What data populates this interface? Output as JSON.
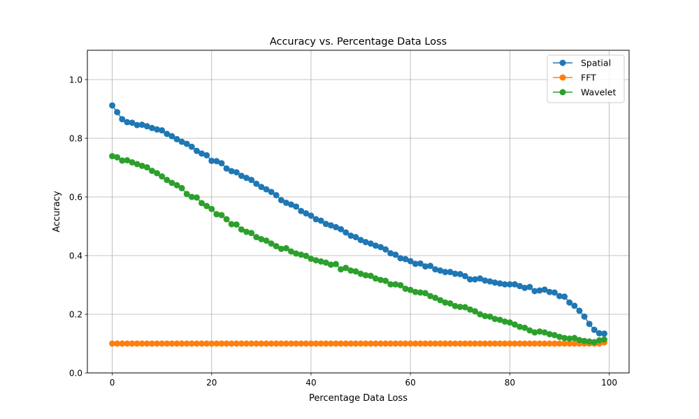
{
  "chart_data": {
    "type": "line",
    "title": "Accuracy vs. Percentage Data Loss",
    "xlabel": "Percentage Data Loss",
    "ylabel": "Accuracy",
    "xlim": [
      -5,
      104
    ],
    "ylim": [
      0,
      1.1
    ],
    "xticks": [
      "0",
      "20",
      "40",
      "60",
      "80",
      "100"
    ],
    "yticks": [
      "0.0",
      "0.2",
      "0.4",
      "0.6",
      "0.8",
      "1.0"
    ],
    "grid": true,
    "legend_position": "top-right",
    "x": [
      0,
      1,
      2,
      3,
      4,
      5,
      6,
      7,
      8,
      9,
      10,
      11,
      12,
      13,
      14,
      15,
      16,
      17,
      18,
      19,
      20,
      21,
      22,
      23,
      24,
      25,
      26,
      27,
      28,
      29,
      30,
      31,
      32,
      33,
      34,
      35,
      36,
      37,
      38,
      39,
      40,
      41,
      42,
      43,
      44,
      45,
      46,
      47,
      48,
      49,
      50,
      51,
      52,
      53,
      54,
      55,
      56,
      57,
      58,
      59,
      60,
      61,
      62,
      63,
      64,
      65,
      66,
      67,
      68,
      69,
      70,
      71,
      72,
      73,
      74,
      75,
      76,
      77,
      78,
      79,
      80,
      81,
      82,
      83,
      84,
      85,
      86,
      87,
      88,
      89,
      90,
      91,
      92,
      93,
      94,
      95,
      96,
      97,
      98,
      99
    ],
    "series": [
      {
        "name": "Spatial",
        "color": "#1f77b4",
        "values": [
          0.912,
          0.889,
          0.865,
          0.855,
          0.853,
          0.845,
          0.846,
          0.841,
          0.835,
          0.83,
          0.827,
          0.815,
          0.807,
          0.797,
          0.788,
          0.781,
          0.771,
          0.757,
          0.748,
          0.742,
          0.723,
          0.722,
          0.715,
          0.697,
          0.688,
          0.684,
          0.672,
          0.665,
          0.658,
          0.645,
          0.634,
          0.626,
          0.617,
          0.606,
          0.589,
          0.58,
          0.574,
          0.567,
          0.552,
          0.544,
          0.536,
          0.524,
          0.519,
          0.508,
          0.503,
          0.497,
          0.49,
          0.479,
          0.468,
          0.463,
          0.453,
          0.446,
          0.441,
          0.434,
          0.429,
          0.421,
          0.408,
          0.403,
          0.391,
          0.388,
          0.381,
          0.372,
          0.373,
          0.363,
          0.365,
          0.353,
          0.349,
          0.344,
          0.344,
          0.338,
          0.337,
          0.33,
          0.319,
          0.319,
          0.322,
          0.315,
          0.312,
          0.308,
          0.305,
          0.302,
          0.302,
          0.302,
          0.296,
          0.29,
          0.293,
          0.279,
          0.281,
          0.284,
          0.276,
          0.274,
          0.262,
          0.26,
          0.24,
          0.229,
          0.212,
          0.192,
          0.167,
          0.147,
          0.135,
          0.134
        ]
      },
      {
        "name": "FFT",
        "color": "#ff7f0e",
        "values": [
          0.1,
          0.1,
          0.1,
          0.1,
          0.1,
          0.1,
          0.1,
          0.1,
          0.1,
          0.1,
          0.1,
          0.1,
          0.1,
          0.1,
          0.1,
          0.1,
          0.1,
          0.1,
          0.1,
          0.1,
          0.1,
          0.1,
          0.1,
          0.1,
          0.1,
          0.1,
          0.1,
          0.1,
          0.1,
          0.1,
          0.1,
          0.1,
          0.1,
          0.1,
          0.1,
          0.1,
          0.1,
          0.1,
          0.1,
          0.1,
          0.1,
          0.1,
          0.1,
          0.1,
          0.1,
          0.1,
          0.1,
          0.1,
          0.1,
          0.1,
          0.1,
          0.1,
          0.1,
          0.1,
          0.1,
          0.1,
          0.1,
          0.1,
          0.1,
          0.1,
          0.1,
          0.1,
          0.1,
          0.1,
          0.1,
          0.1,
          0.1,
          0.1,
          0.1,
          0.1,
          0.1,
          0.1,
          0.1,
          0.1,
          0.1,
          0.1,
          0.1,
          0.1,
          0.1,
          0.1,
          0.1,
          0.1,
          0.1,
          0.1,
          0.1,
          0.1,
          0.1,
          0.1,
          0.1,
          0.1,
          0.1,
          0.1,
          0.1,
          0.1,
          0.1,
          0.1,
          0.1,
          0.1,
          0.1,
          0.104
        ]
      },
      {
        "name": "Wavelet",
        "color": "#2ca02c",
        "values": [
          0.739,
          0.735,
          0.724,
          0.725,
          0.718,
          0.712,
          0.706,
          0.701,
          0.689,
          0.681,
          0.67,
          0.658,
          0.648,
          0.64,
          0.63,
          0.61,
          0.6,
          0.598,
          0.579,
          0.569,
          0.559,
          0.541,
          0.538,
          0.524,
          0.507,
          0.506,
          0.489,
          0.481,
          0.477,
          0.463,
          0.456,
          0.451,
          0.441,
          0.432,
          0.423,
          0.425,
          0.414,
          0.407,
          0.403,
          0.399,
          0.389,
          0.384,
          0.38,
          0.376,
          0.369,
          0.371,
          0.353,
          0.358,
          0.349,
          0.346,
          0.338,
          0.333,
          0.331,
          0.322,
          0.317,
          0.314,
          0.302,
          0.302,
          0.299,
          0.287,
          0.283,
          0.276,
          0.274,
          0.272,
          0.262,
          0.256,
          0.248,
          0.24,
          0.237,
          0.228,
          0.225,
          0.224,
          0.216,
          0.21,
          0.2,
          0.194,
          0.192,
          0.184,
          0.181,
          0.175,
          0.172,
          0.165,
          0.157,
          0.154,
          0.145,
          0.138,
          0.141,
          0.138,
          0.132,
          0.129,
          0.123,
          0.119,
          0.117,
          0.119,
          0.112,
          0.109,
          0.107,
          0.105,
          0.111,
          0.114
        ]
      }
    ]
  }
}
